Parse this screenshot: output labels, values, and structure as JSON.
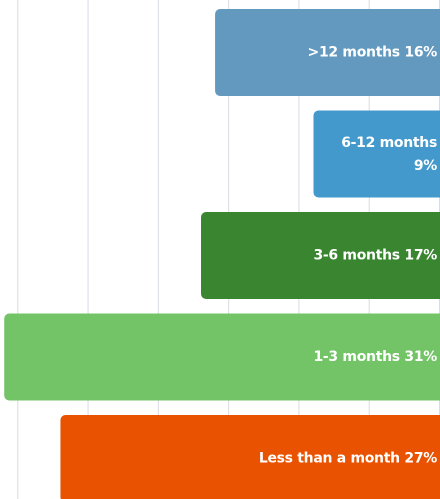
{
  "chart_data": {
    "type": "bar",
    "orientation": "horizontal",
    "categories": [
      ">12  months",
      "6-12 months",
      "3-6 months",
      "1-3 months",
      "Less than a month"
    ],
    "values": [
      16,
      9,
      17,
      31,
      27
    ],
    "value_labels": [
      "16%",
      "9%",
      "17%",
      "31%",
      "27%"
    ],
    "colors": [
      "#6499bf",
      "#4499cc",
      "#3a8530",
      "#72c466",
      "#e85200"
    ],
    "xlim": [
      0,
      31.3
    ],
    "xticks": [
      0,
      5,
      10,
      15,
      20,
      25,
      30
    ],
    "grid": true
  }
}
